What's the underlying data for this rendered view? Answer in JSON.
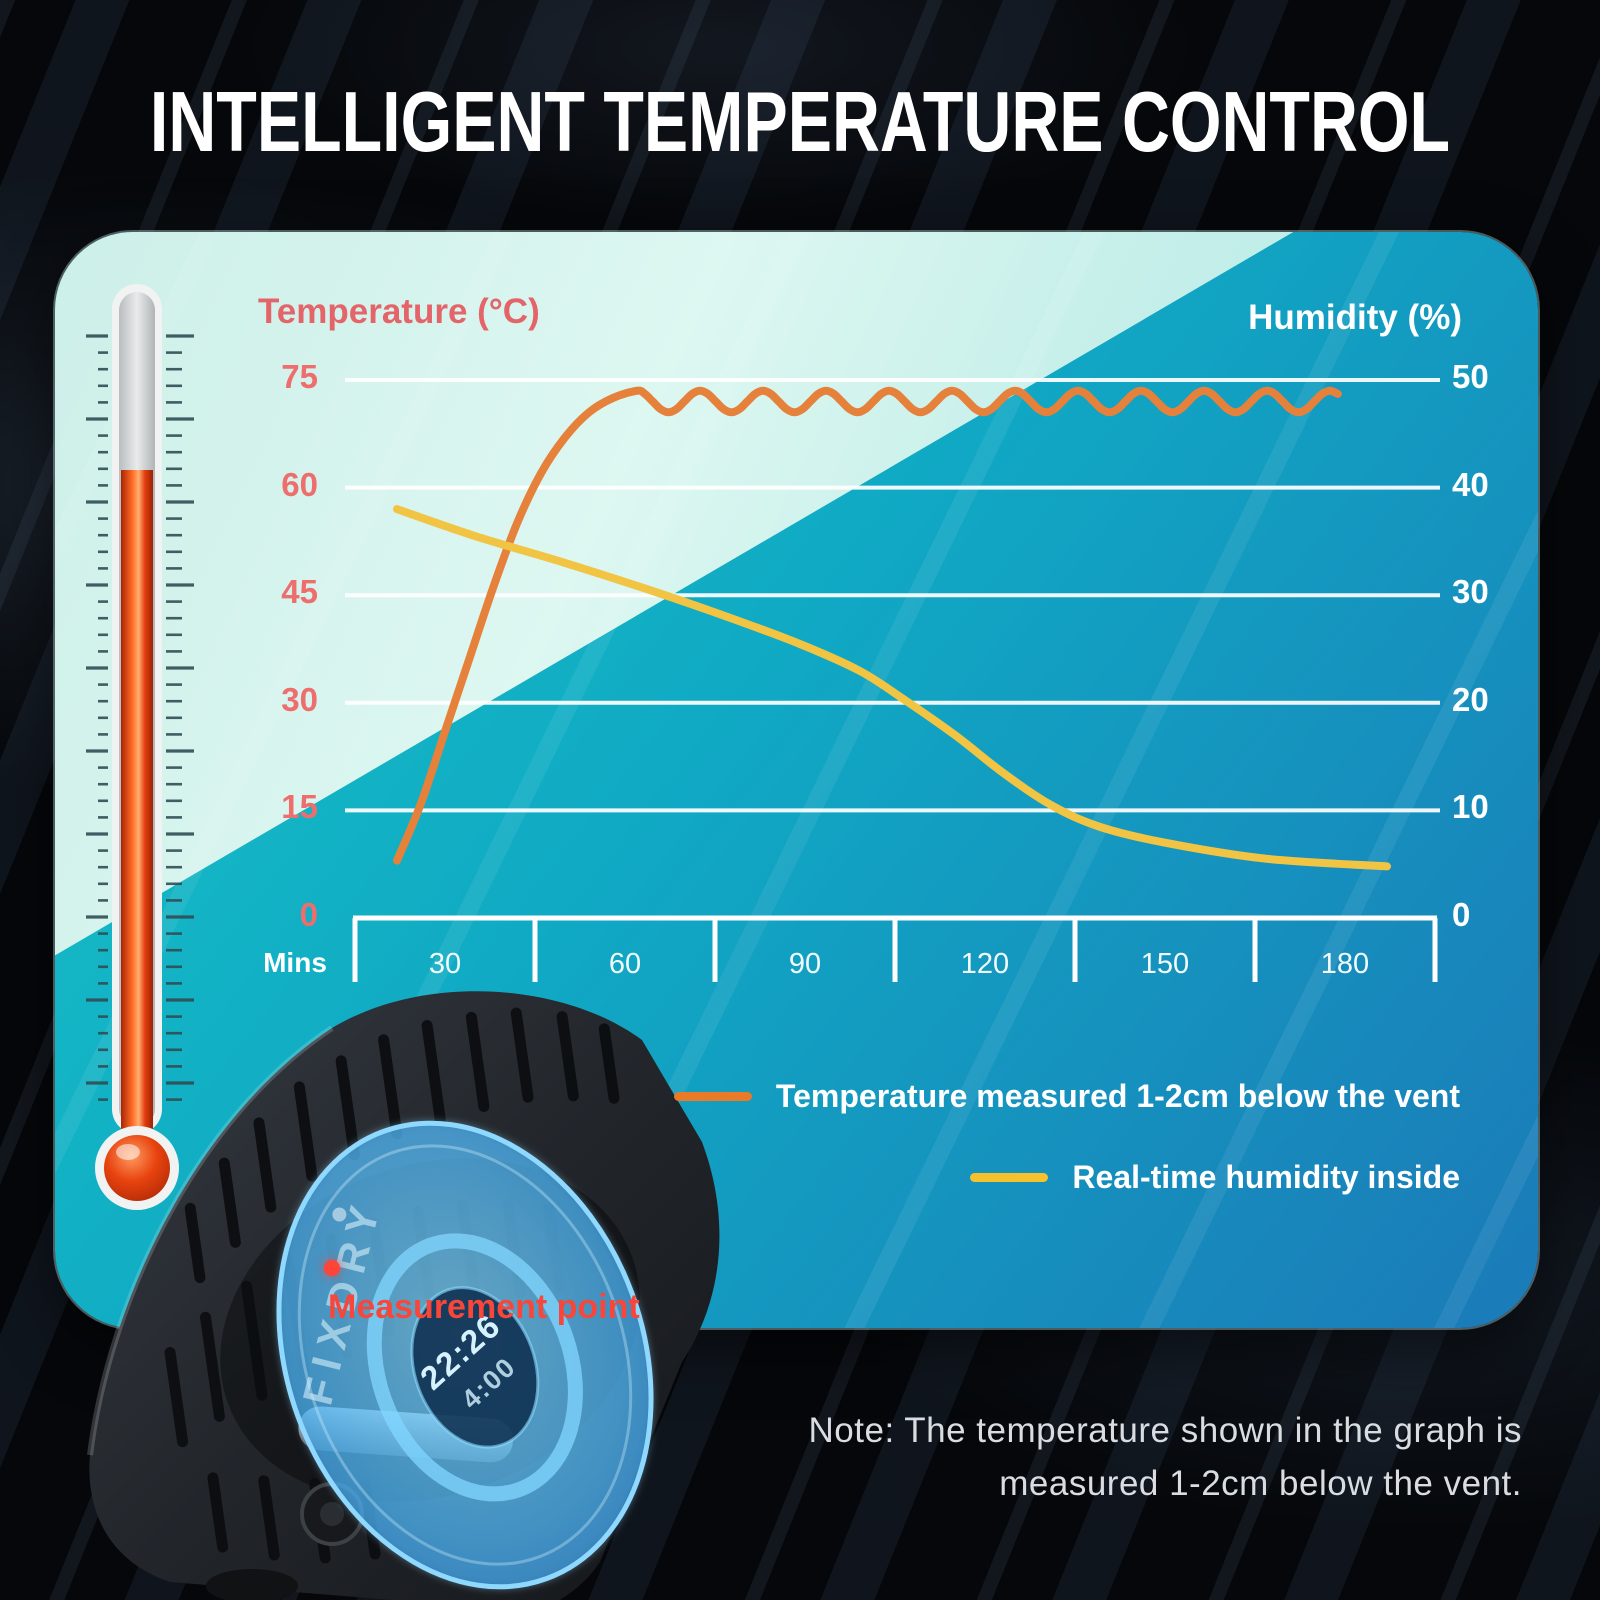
{
  "title": "INTELLIGENT TEMPERATURE CONTROL",
  "axis": {
    "temp_label": "Temperature (°C)",
    "hum_label": "Humidity (%)",
    "mins_label": "Mins"
  },
  "chart_data": {
    "type": "line",
    "title": "Temperature and humidity over drying time",
    "xlabel": "Mins",
    "x_ticks": [
      30,
      60,
      90,
      120,
      150,
      180
    ],
    "x_range": [
      0,
      180
    ],
    "grid": "horizontal",
    "legend_position": "bottom-right",
    "left_axis": {
      "label": "Temperature (°C)",
      "ticks": [
        75,
        60,
        45,
        30,
        15,
        0
      ],
      "range": [
        0,
        75
      ],
      "color": "#EE6D6D"
    },
    "right_axis": {
      "label": "Humidity (%)",
      "ticks": [
        50,
        40,
        30,
        20,
        10,
        0
      ],
      "range": [
        0,
        50
      ],
      "color": "#FFFFFF"
    },
    "series": [
      {
        "name": "Temperature measured 1-2cm below the vent",
        "axis": "left",
        "color": "#E5813B",
        "points": [
          [
            7,
            8
          ],
          [
            11,
            16
          ],
          [
            15,
            26
          ],
          [
            19,
            36
          ],
          [
            23,
            46
          ],
          [
            27,
            55
          ],
          [
            31,
            62
          ],
          [
            35,
            67
          ],
          [
            39,
            70.5
          ],
          [
            43,
            72.5
          ],
          [
            47,
            73.5
          ]
        ],
        "oscillation": {
          "from_min": 47,
          "to_min": 165,
          "center": 72,
          "amplitude": 1.5,
          "period_min": 10.5
        }
      },
      {
        "name": "Real-time humidity inside",
        "axis": "right",
        "color": "#F1C443",
        "points": [
          [
            7,
            38
          ],
          [
            20,
            35.5
          ],
          [
            35,
            33
          ],
          [
            49,
            30.5
          ],
          [
            62,
            28
          ],
          [
            74,
            25.5
          ],
          [
            84,
            23
          ],
          [
            91,
            20.5
          ],
          [
            100,
            17
          ],
          [
            108,
            13.5
          ],
          [
            116,
            10.5
          ],
          [
            124,
            8.5
          ],
          [
            135,
            7
          ],
          [
            152,
            5.5
          ],
          [
            172,
            4.8
          ]
        ]
      }
    ]
  },
  "legend": {
    "items": [
      {
        "label": "Temperature measured 1-2cm below the vent",
        "color": "#E87A28"
      },
      {
        "label": "Real-time humidity inside",
        "color": "#F5C12D"
      }
    ]
  },
  "device": {
    "brand": "FIXDRY",
    "display_line1": "22:26",
    "display_line2": "4:00",
    "callout": "Measurement point"
  },
  "note": {
    "lines": [
      "Note: The temperature shown in the graph is",
      "measured 1-2cm below the vent."
    ]
  },
  "colors": {
    "panel_teal": "#10A9C4",
    "panel_blue": "#1B7AB8",
    "panel_mint": "#D8F4EE",
    "temp_curve": "#E5813B",
    "humidity_curve": "#F1C443",
    "thermometer_fluid": "#E23C0E",
    "callout_red": "#F8473A",
    "title_white": "#FFFFFF"
  }
}
